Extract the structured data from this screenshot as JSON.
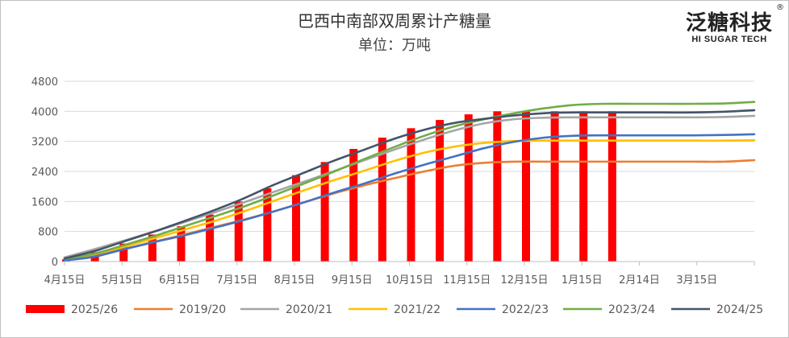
{
  "chart_data": {
    "type": "bar+line",
    "title": "巴西中南部双周累计产糖量",
    "subtitle": "单位：万吨",
    "ylim": [
      0,
      4800
    ],
    "yticks": [
      0,
      800,
      1600,
      2400,
      3200,
      4000,
      4800
    ],
    "xticks": [
      "4月15日",
      "5月15日",
      "6月15日",
      "7月15日",
      "8月15日",
      "9月15日",
      "10月15日",
      "11月15日",
      "12月15日",
      "1月15日",
      "2月14日",
      "3月15日"
    ],
    "bar_series": {
      "name": "2025/26",
      "color": "#ff0000",
      "values": [
        60,
        250,
        480,
        720,
        940,
        1250,
        1600,
        1950,
        2300,
        2650,
        3000,
        3300,
        3550,
        3770,
        3920,
        4000,
        4000,
        4000,
        4000,
        4000
      ]
    },
    "line_series": [
      {
        "name": "2019/20",
        "color": "#ed7d31",
        "values": [
          60,
          180,
          340,
          530,
          720,
          920,
          1120,
          1340,
          1580,
          1820,
          2030,
          2220,
          2400,
          2550,
          2630,
          2660,
          2660,
          2660,
          2660,
          2660,
          2660,
          2660,
          2660,
          2700
        ]
      },
      {
        "name": "2020/21",
        "color": "#a5a5a5",
        "values": [
          110,
          330,
          560,
          800,
          1050,
          1310,
          1580,
          1860,
          2130,
          2410,
          2700,
          2980,
          3250,
          3490,
          3680,
          3790,
          3830,
          3840,
          3840,
          3840,
          3840,
          3840,
          3850,
          3880
        ]
      },
      {
        "name": "2021/22",
        "color": "#ffc000",
        "values": [
          60,
          200,
          400,
          620,
          850,
          1080,
          1340,
          1620,
          1900,
          2170,
          2420,
          2680,
          2900,
          3060,
          3160,
          3210,
          3220,
          3220,
          3220,
          3220,
          3220,
          3220,
          3220,
          3230
        ]
      },
      {
        "name": "2022/23",
        "color": "#4472c4",
        "values": [
          30,
          130,
          330,
          520,
          700,
          900,
          1110,
          1340,
          1580,
          1840,
          2080,
          2340,
          2580,
          2800,
          3020,
          3190,
          3300,
          3350,
          3360,
          3360,
          3360,
          3360,
          3370,
          3390
        ]
      },
      {
        "name": "2023/24",
        "color": "#70ad47",
        "values": [
          70,
          210,
          440,
          680,
          940,
          1200,
          1470,
          1770,
          2080,
          2400,
          2730,
          3050,
          3350,
          3600,
          3790,
          3950,
          4080,
          4170,
          4200,
          4200,
          4200,
          4200,
          4210,
          4250
        ]
      },
      {
        "name": "2024/25",
        "color": "#44546a",
        "values": [
          80,
          280,
          540,
          800,
          1080,
          1370,
          1690,
          2050,
          2370,
          2690,
          2980,
          3270,
          3510,
          3690,
          3800,
          3890,
          3950,
          3970,
          3970,
          3970,
          3970,
          3970,
          3990,
          4030
        ]
      }
    ]
  },
  "logo": {
    "cn": "泛糖科技",
    "en": "HI SUGAR TECH",
    "mark": "®"
  }
}
